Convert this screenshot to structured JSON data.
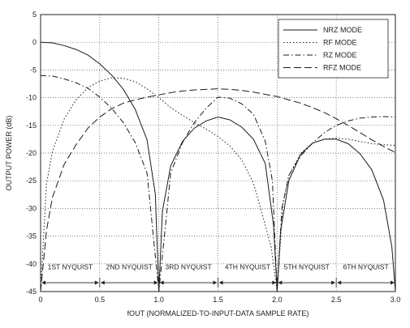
{
  "chart_data": {
    "type": "line",
    "title": "",
    "xlabel": "fOUT (NORMALIZED-TO-INPUT-DATA SAMPLE RATE)",
    "ylabel": "OUTPUT POWER (dB)",
    "xlim": [
      0,
      3.0
    ],
    "ylim": [
      -45,
      5
    ],
    "x_ticks": [
      "0",
      "0.5",
      "1.0",
      "1.5",
      "2.0",
      "2.5",
      "3.0"
    ],
    "y_ticks": [
      "5",
      "0",
      "-5",
      "-10",
      "-15",
      "-20",
      "-25",
      "-30",
      "-35",
      "-40",
      "-45"
    ],
    "grid": "dotted",
    "legend_position": "top-right",
    "series": [
      {
        "name": "NRZ MODE",
        "style": "solid",
        "x": [
          0,
          0.1,
          0.2,
          0.3,
          0.4,
          0.5,
          0.6,
          0.7,
          0.8,
          0.9,
          0.97,
          1.0,
          1.03,
          1.1,
          1.2,
          1.3,
          1.4,
          1.5,
          1.6,
          1.7,
          1.8,
          1.9,
          1.97,
          2.0,
          2.03,
          2.1,
          2.2,
          2.3,
          2.4,
          2.5,
          2.6,
          2.7,
          2.8,
          2.9,
          2.97,
          3.0
        ],
        "y": [
          0,
          -0.1,
          -0.6,
          -1.3,
          -2.3,
          -3.9,
          -5.9,
          -8.5,
          -12.1,
          -17.6,
          -27.4,
          -45,
          -30.5,
          -22.3,
          -17.9,
          -15.5,
          -14.2,
          -13.5,
          -14.0,
          -15.3,
          -17.5,
          -21.9,
          -33.1,
          -45,
          -34.0,
          -24.9,
          -20.2,
          -18.2,
          -17.5,
          -17.5,
          -18.3,
          -20.1,
          -23.0,
          -28.5,
          -36.9,
          -45
        ]
      },
      {
        "name": "RF MODE",
        "style": "dotted",
        "x": [
          0,
          0.05,
          0.1,
          0.2,
          0.3,
          0.4,
          0.5,
          0.6,
          0.7,
          0.8,
          0.9,
          1.0,
          1.1,
          1.2,
          1.3,
          1.4,
          1.5,
          1.6,
          1.7,
          1.8,
          1.9,
          1.95,
          2.0,
          2.05,
          2.1,
          2.2,
          2.3,
          2.4,
          2.5,
          2.6,
          2.7,
          2.8,
          2.9,
          3.0
        ],
        "y": [
          -45,
          -25.6,
          -19.7,
          -13.8,
          -10.4,
          -8.2,
          -7.0,
          -6.4,
          -6.5,
          -7.1,
          -8.4,
          -10.0,
          -11.8,
          -13.2,
          -14.5,
          -15.7,
          -17.0,
          -18.7,
          -21.2,
          -25.4,
          -33.0,
          -37.0,
          -45,
          -29.0,
          -24.0,
          -20.0,
          -18.2,
          -17.5,
          -17.3,
          -17.5,
          -17.9,
          -18.3,
          -18.5,
          -18.6
        ]
      },
      {
        "name": "RZ MODE",
        "style": "dash-dot",
        "x": [
          0,
          0.1,
          0.2,
          0.3,
          0.4,
          0.5,
          0.6,
          0.7,
          0.8,
          0.9,
          1.0,
          1.1,
          1.2,
          1.3,
          1.4,
          1.5,
          1.6,
          1.7,
          1.8,
          1.9,
          1.96,
          2.0,
          2.04,
          2.1,
          2.2,
          2.3,
          2.4,
          2.5,
          2.6,
          2.7,
          2.8,
          2.9,
          3.0
        ],
        "y": [
          -6.0,
          -6.1,
          -6.6,
          -7.3,
          -8.3,
          -9.9,
          -11.9,
          -14.5,
          -18.1,
          -23.6,
          -45,
          -23.6,
          -18.1,
          -14.5,
          -11.9,
          -9.9,
          -10.1,
          -11.1,
          -13.0,
          -17.9,
          -25.0,
          -45,
          -30.0,
          -24.0,
          -20.5,
          -18.2,
          -16.3,
          -15.0,
          -14.2,
          -13.7,
          -13.5,
          -13.4,
          -13.5
        ]
      },
      {
        "name": "RFZ MODE",
        "style": "dashed",
        "x": [
          0,
          0.05,
          0.1,
          0.2,
          0.3,
          0.4,
          0.5,
          0.6,
          0.7,
          0.8,
          0.9,
          1.0,
          1.1,
          1.2,
          1.3,
          1.4,
          1.5,
          1.6,
          1.7,
          1.8,
          1.9,
          2.0,
          2.1,
          2.2,
          2.3,
          2.4,
          2.5,
          2.6,
          2.7,
          2.8,
          2.9,
          3.0
        ],
        "y": [
          -45,
          -34.0,
          -28.0,
          -22.0,
          -18.5,
          -15.5,
          -13.5,
          -12.0,
          -11.0,
          -10.4,
          -9.9,
          -9.5,
          -9.1,
          -8.8,
          -8.6,
          -8.5,
          -8.4,
          -8.5,
          -8.7,
          -9.0,
          -9.4,
          -9.8,
          -10.4,
          -11.0,
          -11.8,
          -12.7,
          -13.8,
          -15.0,
          -16.3,
          -17.6,
          -18.8,
          -19.9
        ]
      }
    ],
    "nyquist_zones": [
      {
        "label": "1ST NYQUIST",
        "x_start": 0.0,
        "x_end": 0.5
      },
      {
        "label": "2ND NYQUIST",
        "x_start": 0.5,
        "x_end": 1.0
      },
      {
        "label": "3RD NYQUIST",
        "x_start": 1.0,
        "x_end": 1.5
      },
      {
        "label": "4TH NYQUIST",
        "x_start": 1.5,
        "x_end": 2.0
      },
      {
        "label": "5TH NYQUIST",
        "x_start": 2.0,
        "x_end": 2.5
      },
      {
        "label": "6TH NYQUIST",
        "x_start": 2.5,
        "x_end": 3.0
      }
    ],
    "nyquist_arrow_level": -43.4
  }
}
